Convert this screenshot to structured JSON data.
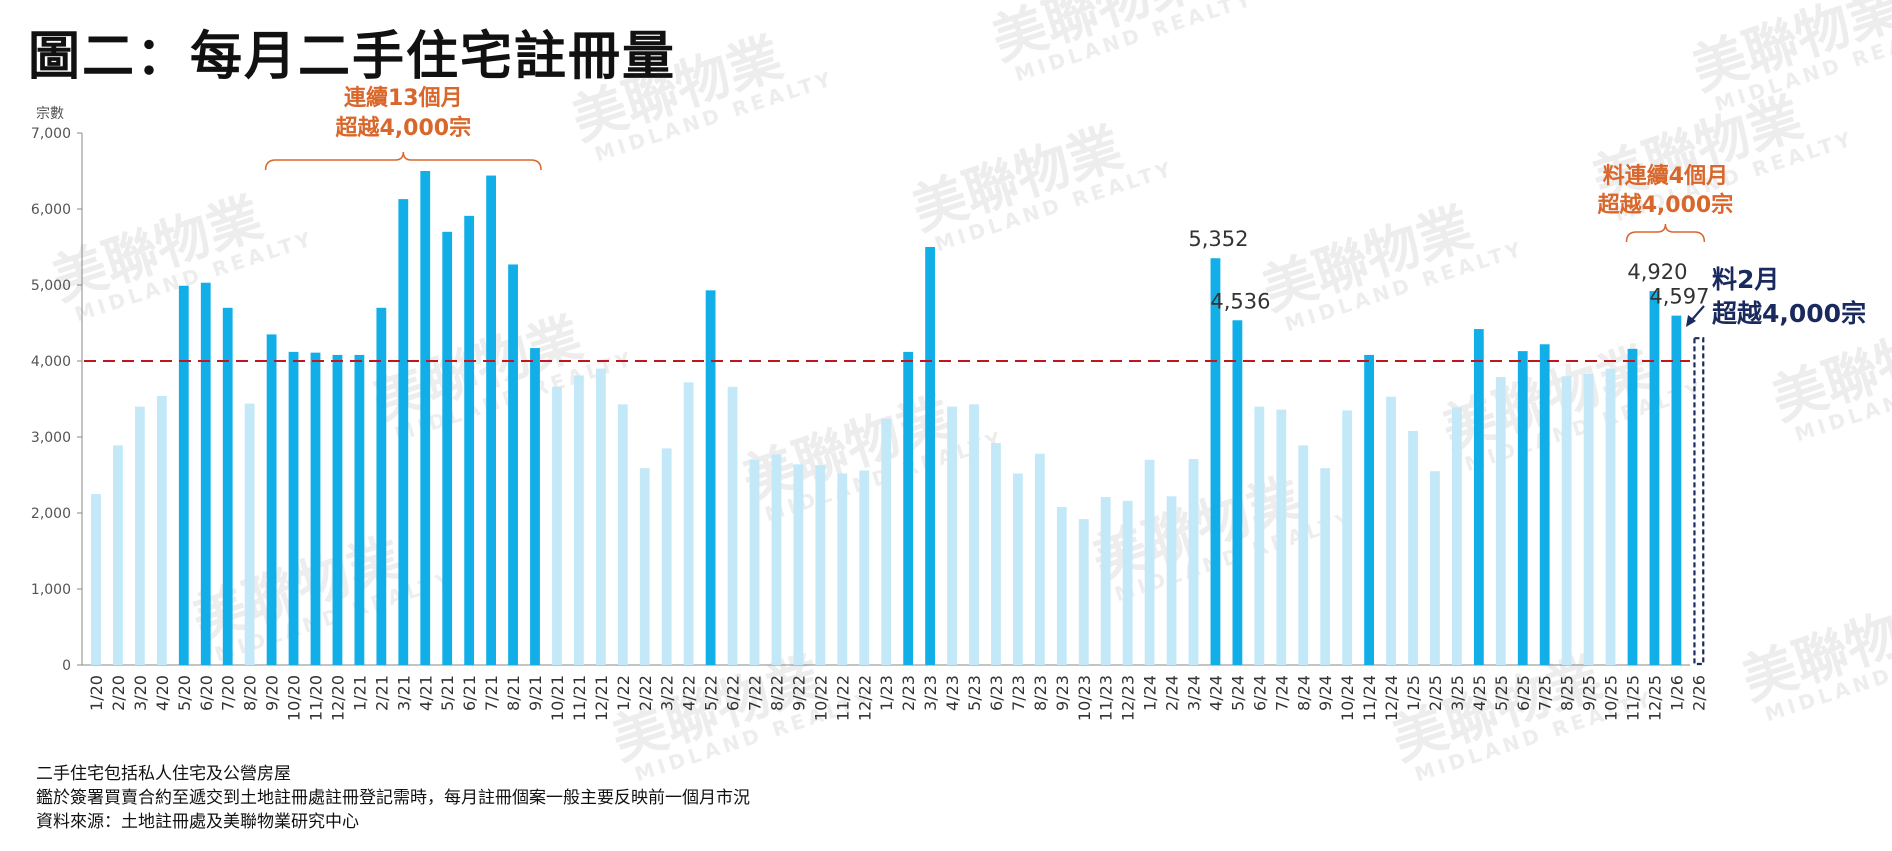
{
  "title": "圖二：每月二手住宅註冊量",
  "notes": [
    "二手住宅包括私人住宅及公營房屋",
    "鑑於簽署買賣合約至遞交到土地註冊處註冊登記需時，每月註冊個案一般主要反映前一個月市況",
    "資料來源：土地註冊處及美聯物業研究中心"
  ],
  "watermark": {
    "text": "美聯物業",
    "subtext": "MIDLAND REALTY"
  },
  "colors": {
    "highlight": "#12aee8",
    "normal": "#c3e9f9",
    "threshold": "#c0161e",
    "annotation": "#d9662a",
    "forecast": "#1a2a5e"
  },
  "chart_data": {
    "type": "bar",
    "ylabel": "宗數",
    "ylim": [
      0,
      7000
    ],
    "yticks": [
      "0",
      "1,000",
      "2,000",
      "3,000",
      "4,000",
      "5,000",
      "6,000",
      "7,000"
    ],
    "threshold": 4000,
    "categories": [
      "1/20",
      "2/20",
      "3/20",
      "4/20",
      "5/20",
      "6/20",
      "7/20",
      "8/20",
      "9/20",
      "10/20",
      "11/20",
      "12/20",
      "1/21",
      "2/21",
      "3/21",
      "4/21",
      "5/21",
      "6/21",
      "7/21",
      "8/21",
      "9/21",
      "10/21",
      "11/21",
      "12/21",
      "1/22",
      "2/22",
      "3/22",
      "4/22",
      "5/22",
      "6/22",
      "7/22",
      "8/22",
      "9/22",
      "10/22",
      "11/22",
      "12/22",
      "1/23",
      "2/23",
      "3/23",
      "4/23",
      "5/23",
      "6/23",
      "7/23",
      "8/23",
      "9/23",
      "10/23",
      "11/23",
      "12/23",
      "1/24",
      "2/24",
      "3/24",
      "4/24",
      "5/24",
      "6/24",
      "7/24",
      "8/24",
      "9/24",
      "10/24",
      "11/24",
      "12/24",
      "1/25",
      "2/25",
      "3/25",
      "4/25",
      "5/25",
      "6/25",
      "7/25",
      "8/25",
      "9/25",
      "10/25",
      "11/25",
      "12/25",
      "1/26",
      "2/26"
    ],
    "values": [
      2250,
      2890,
      3400,
      3540,
      4990,
      5030,
      4700,
      3440,
      4350,
      4120,
      4110,
      4080,
      4080,
      4700,
      6130,
      6500,
      5700,
      5910,
      6440,
      5270,
      4170,
      3660,
      3810,
      3900,
      3430,
      2590,
      2850,
      3720,
      4930,
      3660,
      2700,
      2770,
      2640,
      2630,
      2520,
      2560,
      3240,
      4120,
      5500,
      3400,
      3430,
      2920,
      2520,
      2780,
      2080,
      1920,
      2210,
      2160,
      2700,
      2220,
      2710,
      5352,
      4536,
      3400,
      3360,
      2890,
      2590,
      3350,
      4080,
      3530,
      3080,
      2550,
      3390,
      4420,
      3790,
      4130,
      4220,
      3800,
      3830,
      3900,
      4160,
      4920,
      4597,
      4300
    ],
    "highlight": [
      false,
      false,
      false,
      false,
      true,
      true,
      true,
      false,
      true,
      true,
      true,
      true,
      true,
      true,
      true,
      true,
      true,
      true,
      true,
      true,
      true,
      false,
      false,
      false,
      false,
      false,
      false,
      false,
      true,
      false,
      false,
      false,
      false,
      false,
      false,
      false,
      false,
      true,
      true,
      false,
      false,
      false,
      false,
      false,
      false,
      false,
      false,
      false,
      false,
      false,
      false,
      true,
      true,
      false,
      false,
      false,
      false,
      false,
      true,
      false,
      false,
      false,
      false,
      true,
      false,
      true,
      true,
      false,
      false,
      false,
      true,
      true,
      true,
      false
    ],
    "forecast_index": 73,
    "data_labels": [
      {
        "index": 51,
        "text": "5,352"
      },
      {
        "index": 52,
        "text": "4,536"
      },
      {
        "index": 71,
        "text": "4,920"
      },
      {
        "index": 72,
        "text": "4,597"
      }
    ],
    "annotations": [
      {
        "from": 8,
        "to": 20,
        "lines": [
          "連續13個月",
          "超越4,000宗"
        ]
      },
      {
        "from": 70,
        "to": 73,
        "lines": [
          "料連續4個月",
          "超越4,000宗"
        ]
      }
    ],
    "forecast_note": [
      "料2月",
      "超越4,000宗"
    ]
  }
}
